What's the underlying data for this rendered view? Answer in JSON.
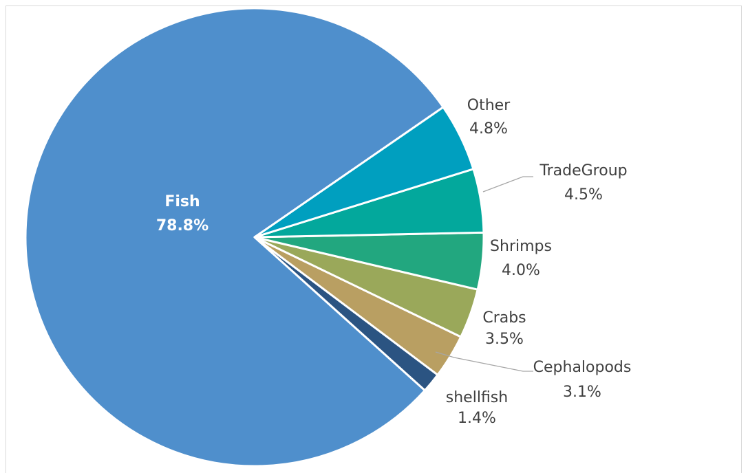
{
  "chart_data": {
    "type": "pie",
    "title": "",
    "start_angle_deg": 325.4,
    "direction": "counterclockwise",
    "slices": [
      {
        "label": "Fish",
        "value": 78.8,
        "value_label": "78.8%",
        "color": "#4f8fcc",
        "label_inside": true
      },
      {
        "label": "shellfish",
        "value": 1.4,
        "value_label": "1.4%",
        "color": "#2b5482",
        "label_inside": false
      },
      {
        "label": "Cephalopods",
        "value": 3.1,
        "value_label": "3.1%",
        "color": "#b99f62",
        "label_inside": false
      },
      {
        "label": "Crabs",
        "value": 3.5,
        "value_label": "3.5%",
        "color": "#9aa85a",
        "label_inside": false
      },
      {
        "label": "Shrimps",
        "value": 4.0,
        "value_label": "4.0%",
        "color": "#22a77f",
        "label_inside": false
      },
      {
        "label": "TradeGroup",
        "value": 4.5,
        "value_label": "4.5%",
        "color": "#03a89c",
        "label_inside": false
      },
      {
        "label": "Other",
        "value": 4.8,
        "value_label": "4.8%",
        "color": "#009fbf",
        "label_inside": false
      }
    ]
  }
}
